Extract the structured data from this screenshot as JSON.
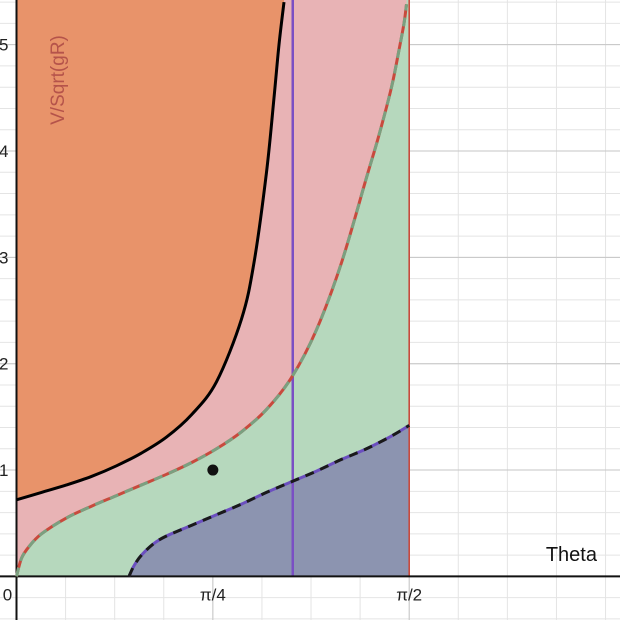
{
  "chart_data": {
    "type": "area",
    "title": "",
    "xlabel": "Theta",
    "ylabel": "V/Sqrt(gR)",
    "xlim": [
      -0.066,
      2.414
    ],
    "ylim": [
      -0.41,
      5.42
    ],
    "grid": true,
    "x_tick_values": [
      0,
      0.7854,
      1.5708
    ],
    "x_tick_labels": [
      "0",
      "π/4",
      "π/2"
    ],
    "y_ticks": [
      1,
      2,
      3,
      4,
      5
    ],
    "x_minor_step": 0.19635,
    "y_minor_step": 0.2,
    "regions": [
      {
        "id": "top",
        "color": "#e8936a",
        "bounded_below_by": "upper-curve"
      },
      {
        "id": "middle",
        "color": "#e8b3b5",
        "between": [
          "middle-curve",
          "upper-curve"
        ]
      },
      {
        "id": "lower",
        "color": "#b6d8bd",
        "between": [
          "lower-curve",
          "middle-curve"
        ]
      },
      {
        "id": "bottom",
        "color": "#8c94b0",
        "bounded_above_by": "lower-curve"
      }
    ],
    "series": [
      {
        "id": "upper-curve",
        "color": "#000000",
        "style": "solid",
        "x": [
          0,
          0.1,
          0.2,
          0.3,
          0.4,
          0.5,
          0.6,
          0.7,
          0.8,
          0.9,
          0.95,
          1.0,
          1.03,
          1.05,
          1.07
        ],
        "y": [
          0.72,
          0.79,
          0.86,
          0.94,
          1.04,
          1.16,
          1.31,
          1.52,
          1.83,
          2.42,
          2.95,
          3.8,
          4.5,
          5.0,
          5.4
        ]
      },
      {
        "id": "middle-curve",
        "color": "#c84a3d",
        "dash_color": "#7aa080",
        "style": "dashed",
        "x": [
          0,
          0.02,
          0.05,
          0.1,
          0.2,
          0.3,
          0.4,
          0.5,
          0.6,
          0.7,
          0.8,
          0.9,
          1.0,
          1.1,
          1.2,
          1.3,
          1.4,
          1.45,
          1.5,
          1.53,
          1.55,
          1.56
        ],
        "y": [
          0,
          0.17,
          0.28,
          0.4,
          0.55,
          0.66,
          0.76,
          0.86,
          0.96,
          1.07,
          1.2,
          1.36,
          1.57,
          1.87,
          2.32,
          2.95,
          3.75,
          4.15,
          4.6,
          4.95,
          5.2,
          5.38
        ]
      },
      {
        "id": "lower-curve",
        "color": "#6b4fbf",
        "dash_color": "#1a1a1a",
        "style": "dashed",
        "x": [
          0.45,
          0.47,
          0.5,
          0.55,
          0.6,
          0.7,
          0.8,
          0.9,
          1.0,
          1.1,
          1.2,
          1.3,
          1.4,
          1.5,
          1.5708
        ],
        "y": [
          0,
          0.1,
          0.2,
          0.31,
          0.38,
          0.48,
          0.58,
          0.68,
          0.79,
          0.89,
          0.99,
          1.1,
          1.2,
          1.32,
          1.42
        ]
      }
    ],
    "vertical_lines": [
      {
        "id": "vertical-line",
        "x": 1.105,
        "color": "#7a4fc4"
      },
      {
        "id": "boundary-left",
        "x": 0,
        "color": "#c84a3d"
      },
      {
        "id": "boundary-right",
        "x": 1.5708,
        "color": "#c84a3d"
      }
    ],
    "points": [
      {
        "x": 0.7854,
        "y": 1.0,
        "color": "#111111"
      }
    ]
  }
}
